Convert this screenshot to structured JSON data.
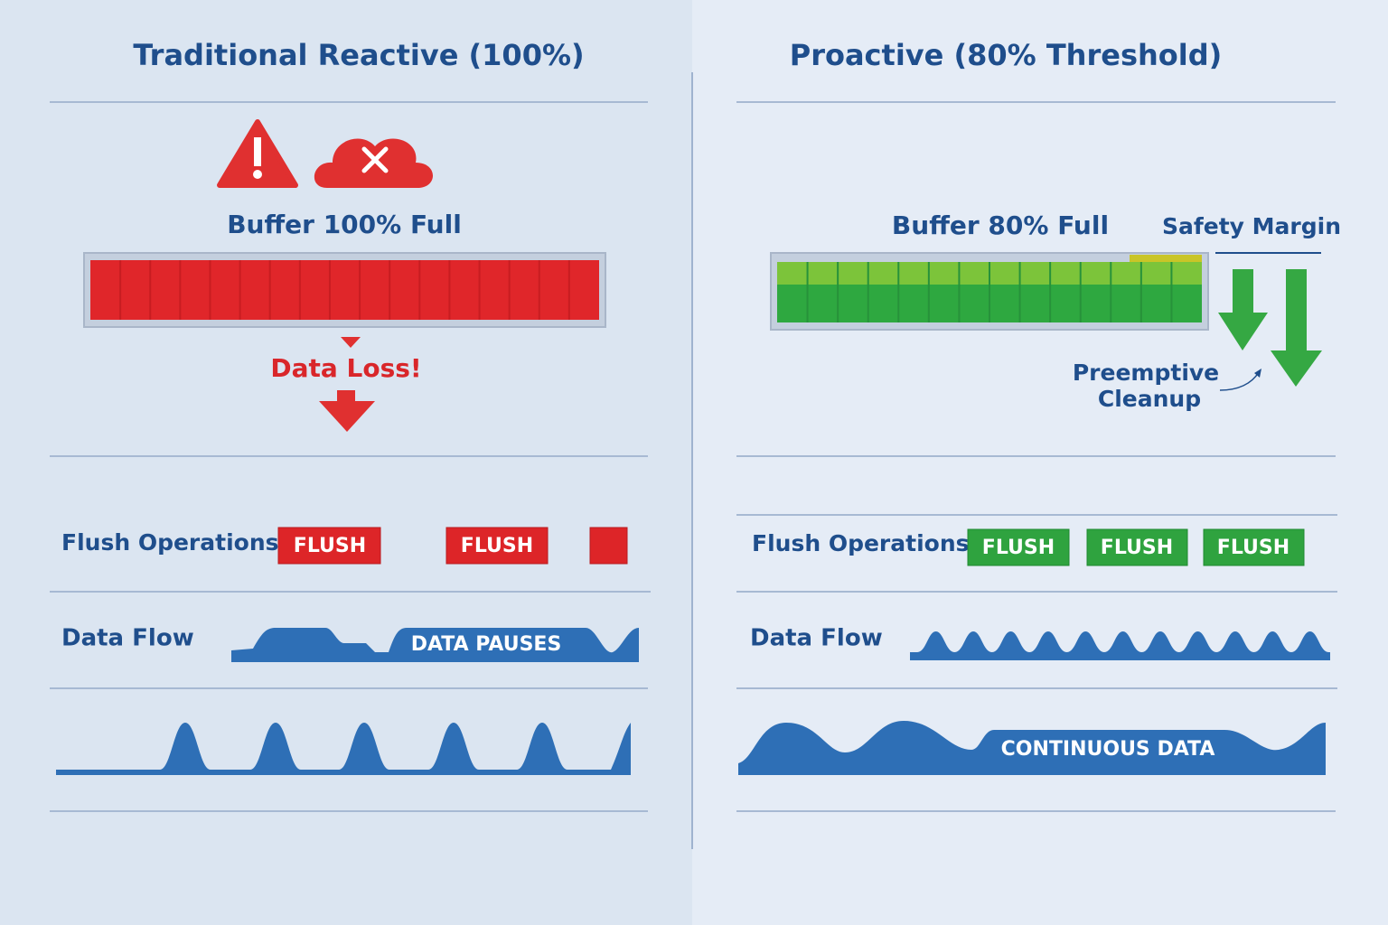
{
  "left": {
    "title": "Traditional Reactive (100%)",
    "buffer_label": "Buffer 100% Full",
    "alert": "Data Loss!",
    "flush_label": "Flush Operations",
    "flush_blocks": [
      "FLUSH",
      "FLUSH"
    ],
    "flow_label": "Data Flow",
    "flow_note": "DATA PAUSES"
  },
  "right": {
    "title": "Proactive (80% Threshold)",
    "buffer_label": "Buffer 80% Full",
    "margin_label": "Safety Margin",
    "cleanup_label": [
      "Preemptive",
      "Cleanup"
    ],
    "flush_label": "Flush Operations",
    "flush_blocks": [
      "FLUSH",
      "FLUSH",
      "FLUSH"
    ],
    "flow_label": "Data Flow",
    "flow_note": "CONTINUOUS DATA"
  }
}
